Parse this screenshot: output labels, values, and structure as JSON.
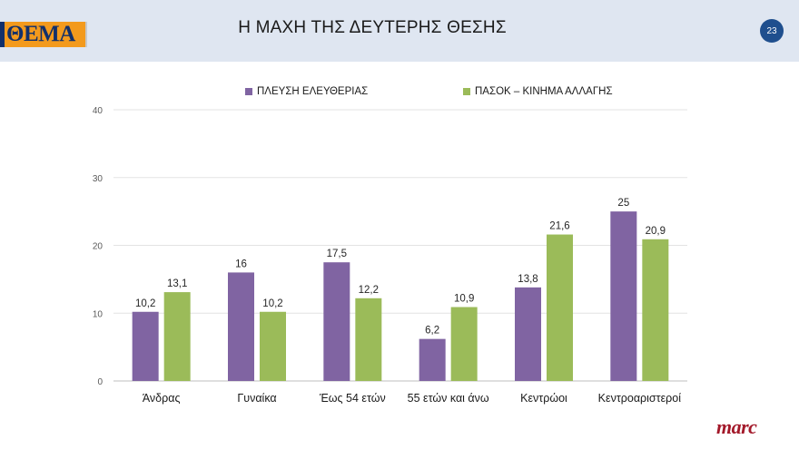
{
  "header": {
    "logo_text": "ΘΕΜΑ",
    "title": "Η ΜΑΧΗ ΤΗΣ ΔΕΥΤΕΡΗΣ ΘΕΣΗΣ",
    "page_number": "23"
  },
  "footer": {
    "brand": "marc"
  },
  "colors": {
    "series_1": "#8064a2",
    "series_2": "#9bbb59",
    "header_bg": "#dfe6f1",
    "badge_bg": "#1f4f8e",
    "logo_bg": "#f39a1d",
    "brand": "#a3192a"
  },
  "chart_data": {
    "type": "bar",
    "title": "",
    "xlabel": "",
    "ylabel": "",
    "ylim": [
      0,
      40
    ],
    "yticks": [
      "0",
      "10",
      "20",
      "30",
      "40"
    ],
    "grid": true,
    "legend_position": "top",
    "categories": [
      "Άνδρας",
      "Γυναίκα",
      "Έως 54 ετών",
      "55 ετών και άνω",
      "Κεντρώοι",
      "Κεντροαριστεροί"
    ],
    "series": [
      {
        "name": "ΠΛΕΥΣΗ ΕΛΕΥΘΕΡΙΑΣ",
        "values": [
          10.2,
          16,
          17.5,
          6.2,
          13.8,
          25
        ],
        "labels": [
          "10,2",
          "16",
          "17,5",
          "6,2",
          "13,8",
          "25"
        ]
      },
      {
        "name": "ΠΑΣΟΚ – ΚΙΝΗΜΑ ΑΛΛΑΓΗΣ",
        "values": [
          13.1,
          10.2,
          12.2,
          10.9,
          21.6,
          20.9
        ],
        "labels": [
          "13,1",
          "10,2",
          "12,2",
          "10,9",
          "21,6",
          "20,9"
        ]
      }
    ]
  }
}
